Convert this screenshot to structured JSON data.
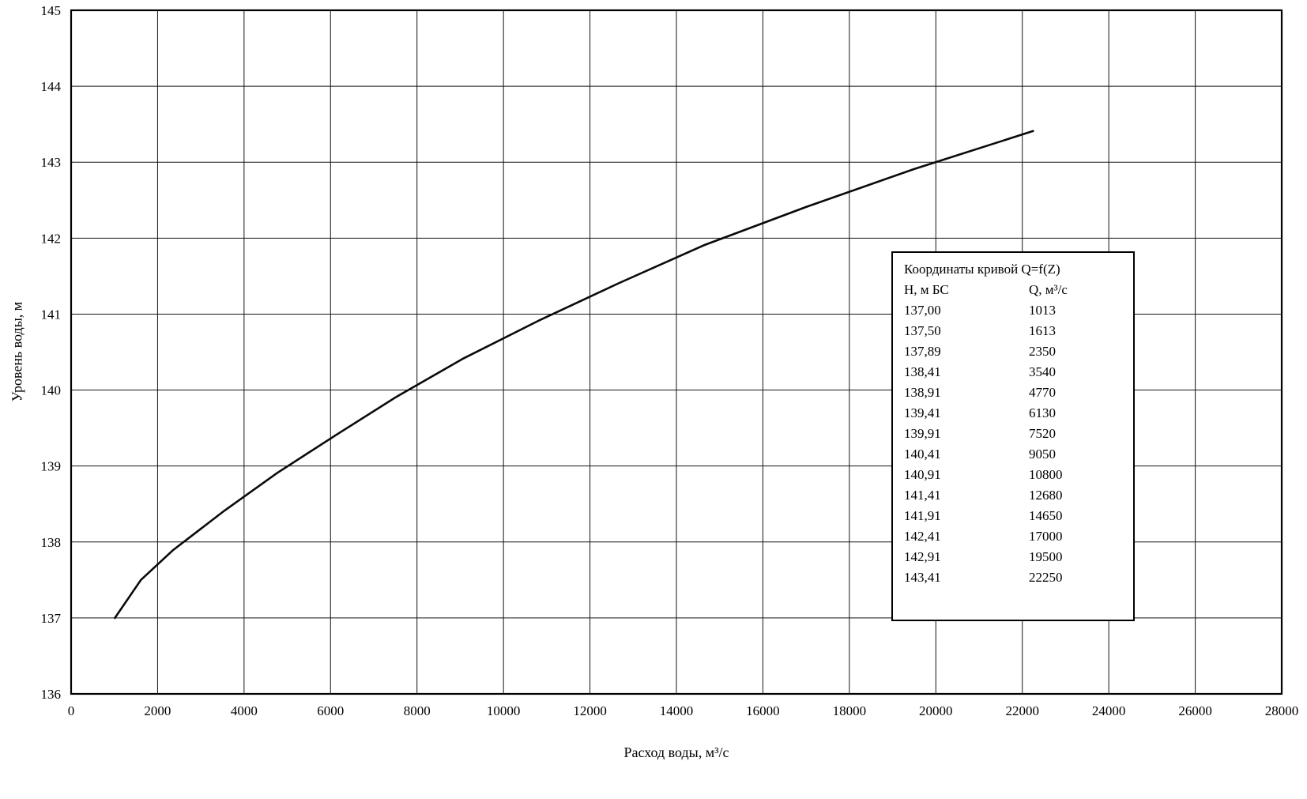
{
  "chart_data": {
    "type": "line",
    "title": "",
    "xlabel": "Расход воды, м³/с",
    "ylabel": "Уровень воды, м",
    "xlim": [
      0,
      28000
    ],
    "ylim": [
      136,
      145
    ],
    "x_tick_step": 2000,
    "y_tick_step": 1,
    "grid": true,
    "legend_position": "inside-right",
    "series": [
      {
        "name": "Q=f(Z)",
        "points": [
          [
            1013,
            137.0
          ],
          [
            1613,
            137.5
          ],
          [
            2350,
            137.89
          ],
          [
            3540,
            138.41
          ],
          [
            4770,
            138.91
          ],
          [
            6130,
            139.41
          ],
          [
            7520,
            139.91
          ],
          [
            9050,
            140.41
          ],
          [
            10800,
            140.91
          ],
          [
            12680,
            141.41
          ],
          [
            14650,
            141.91
          ],
          [
            17000,
            142.41
          ],
          [
            19500,
            142.91
          ],
          [
            22250,
            143.41
          ]
        ]
      }
    ],
    "legend": {
      "title": "Координаты  кривой Q=f(Z)",
      "columns": [
        "Н, м БС",
        "Q, м³/с"
      ],
      "rows": [
        [
          "137,00",
          "1013"
        ],
        [
          "137,50",
          "1613"
        ],
        [
          "137,89",
          "2350"
        ],
        [
          "138,41",
          "3540"
        ],
        [
          "138,91",
          "4770"
        ],
        [
          "139,41",
          "6130"
        ],
        [
          "139,91",
          "7520"
        ],
        [
          "140,41",
          "9050"
        ],
        [
          "140,91",
          "10800"
        ],
        [
          "141,41",
          "12680"
        ],
        [
          "141,91",
          "14650"
        ],
        [
          "142,41",
          "17000"
        ],
        [
          "142,91",
          "19500"
        ],
        [
          "143,41",
          "22250"
        ]
      ]
    }
  }
}
